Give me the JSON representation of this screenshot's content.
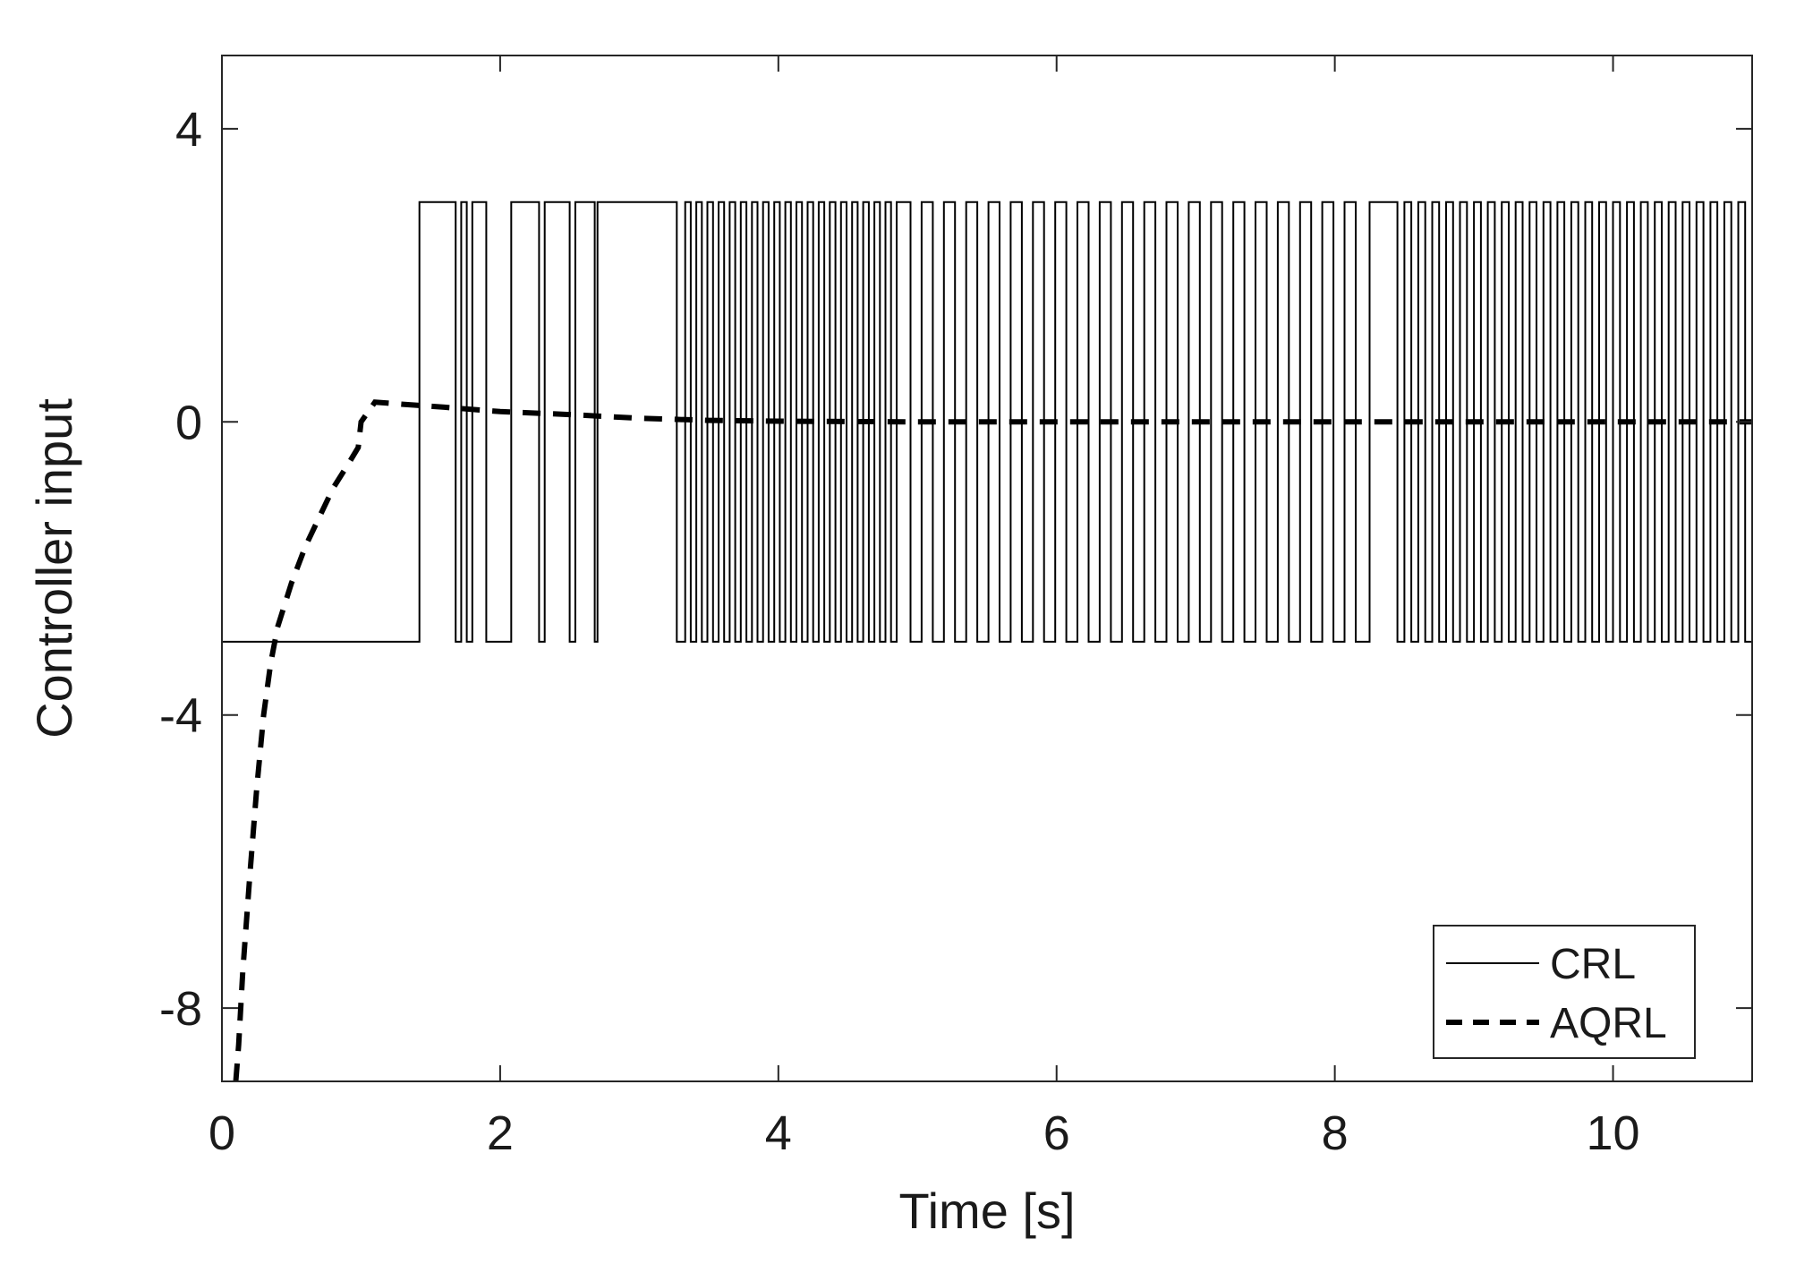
{
  "chart_data": {
    "type": "line",
    "title": "",
    "xlabel": "Time [s]",
    "ylabel": "Controller input",
    "xlim": [
      0,
      11
    ],
    "ylim": [
      -9,
      5
    ],
    "x_ticks": [
      0,
      2,
      4,
      6,
      8,
      10
    ],
    "x_tick_labels": [
      "0",
      "2",
      "4",
      "6",
      "8",
      "10"
    ],
    "y_ticks": [
      -8,
      -4,
      0,
      4
    ],
    "y_tick_labels": [
      "-8",
      "-4",
      "0",
      "4"
    ],
    "grid": false,
    "legend_position": "bottom-right",
    "series": [
      {
        "name": "CRL",
        "style": "solid",
        "color": "#000000",
        "high": 3,
        "low": -3,
        "initial": -3,
        "switch_times": [
          1.42,
          1.68,
          1.72,
          1.76,
          1.8,
          1.9,
          2.08,
          2.28,
          2.32,
          2.5,
          2.54,
          2.68,
          2.7,
          3.27,
          3.33,
          3.37,
          3.41,
          3.45,
          3.49,
          3.53,
          3.57,
          3.61,
          3.65,
          3.69,
          3.73,
          3.77,
          3.81,
          3.85,
          3.89,
          3.93,
          3.97,
          4.01,
          4.05,
          4.09,
          4.13,
          4.17,
          4.21,
          4.25,
          4.29,
          4.33,
          4.37,
          4.41,
          4.45,
          4.49,
          4.53,
          4.57,
          4.61,
          4.65,
          4.69,
          4.73,
          4.77,
          4.81,
          4.85,
          4.95,
          5.03,
          5.11,
          5.19,
          5.27,
          5.35,
          5.43,
          5.51,
          5.59,
          5.67,
          5.75,
          5.83,
          5.91,
          5.99,
          6.07,
          6.15,
          6.23,
          6.31,
          6.39,
          6.47,
          6.55,
          6.63,
          6.71,
          6.79,
          6.87,
          6.95,
          7.03,
          7.11,
          7.19,
          7.27,
          7.35,
          7.43,
          7.51,
          7.59,
          7.67,
          7.75,
          7.83,
          7.91,
          7.99,
          8.07,
          8.15,
          8.25,
          8.45,
          8.5,
          8.55,
          8.6,
          8.65,
          8.7,
          8.75,
          8.8,
          8.85,
          8.9,
          8.95,
          9.0,
          9.05,
          9.1,
          9.15,
          9.2,
          9.25,
          9.3,
          9.35,
          9.4,
          9.45,
          9.5,
          9.55,
          9.6,
          9.65,
          9.7,
          9.75,
          9.8,
          9.85,
          9.9,
          9.95,
          10.0,
          10.05,
          10.1,
          10.15,
          10.2,
          10.25,
          10.3,
          10.35,
          10.4,
          10.45,
          10.5,
          10.55,
          10.6,
          10.65,
          10.7,
          10.75,
          10.8,
          10.85,
          10.9,
          10.95
        ]
      },
      {
        "name": "AQRL",
        "style": "dashed",
        "color": "#000000",
        "x": [
          0.1,
          0.12,
          0.15,
          0.2,
          0.25,
          0.3,
          0.35,
          0.4,
          0.5,
          0.6,
          0.7,
          0.8,
          0.9,
          0.98,
          1.0,
          1.1,
          1.3,
          1.6,
          2.0,
          2.5,
          3.0,
          3.5,
          4.0,
          5.0,
          6.0,
          7.0,
          8.0,
          9.0,
          10.0,
          11.0
        ],
        "y": [
          -9.0,
          -8.5,
          -7.5,
          -6.2,
          -5.0,
          -4.0,
          -3.3,
          -2.8,
          -2.2,
          -1.7,
          -1.3,
          -0.9,
          -0.6,
          -0.35,
          0.0,
          0.27,
          0.24,
          0.2,
          0.14,
          0.1,
          0.05,
          0.02,
          0.01,
          0.0,
          0.0,
          0.0,
          0.0,
          0.0,
          0.0,
          0.0
        ]
      }
    ]
  }
}
